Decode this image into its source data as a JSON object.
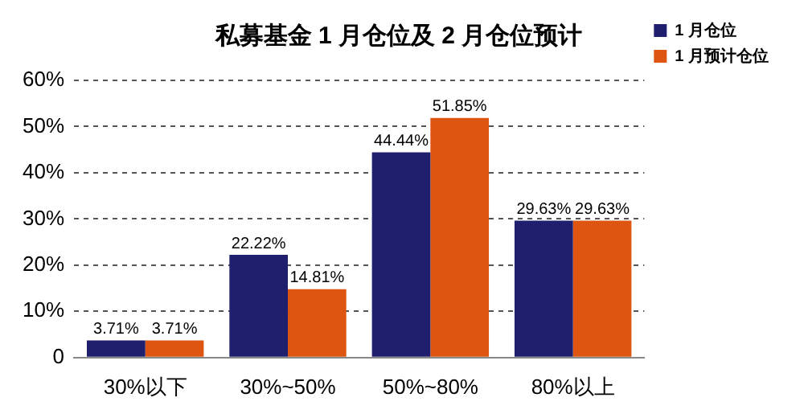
{
  "chart_data": {
    "type": "bar",
    "title": "私募基金 1 月仓位及 2 月仓位预计",
    "categories": [
      "30%以下",
      "30%~50%",
      "50%~80%",
      "80%以上"
    ],
    "series": [
      {
        "name": "1 月仓位",
        "color": "#1f1f6e",
        "values": [
          3.71,
          22.22,
          44.44,
          29.63
        ],
        "value_labels": [
          "3.71%",
          "22.22%",
          "44.44%",
          "29.63%"
        ]
      },
      {
        "name": "1 月预计仓位",
        "color": "#dd5511",
        "values": [
          3.71,
          14.81,
          51.85,
          29.63
        ],
        "value_labels": [
          "3.71%",
          "14.81%",
          "51.85%",
          "29.63%"
        ]
      }
    ],
    "ylim": [
      0,
      60
    ],
    "yticks": [
      0,
      {
        "value": 10,
        "label": "10%"
      },
      {
        "value": 20,
        "label": "20%"
      },
      {
        "value": 30,
        "label": "30%"
      },
      {
        "value": 40,
        "label": "40%"
      },
      {
        "value": 50,
        "label": "50%"
      },
      {
        "value": 60,
        "label": "60%"
      }
    ],
    "grid": "y",
    "legend": "top right"
  }
}
